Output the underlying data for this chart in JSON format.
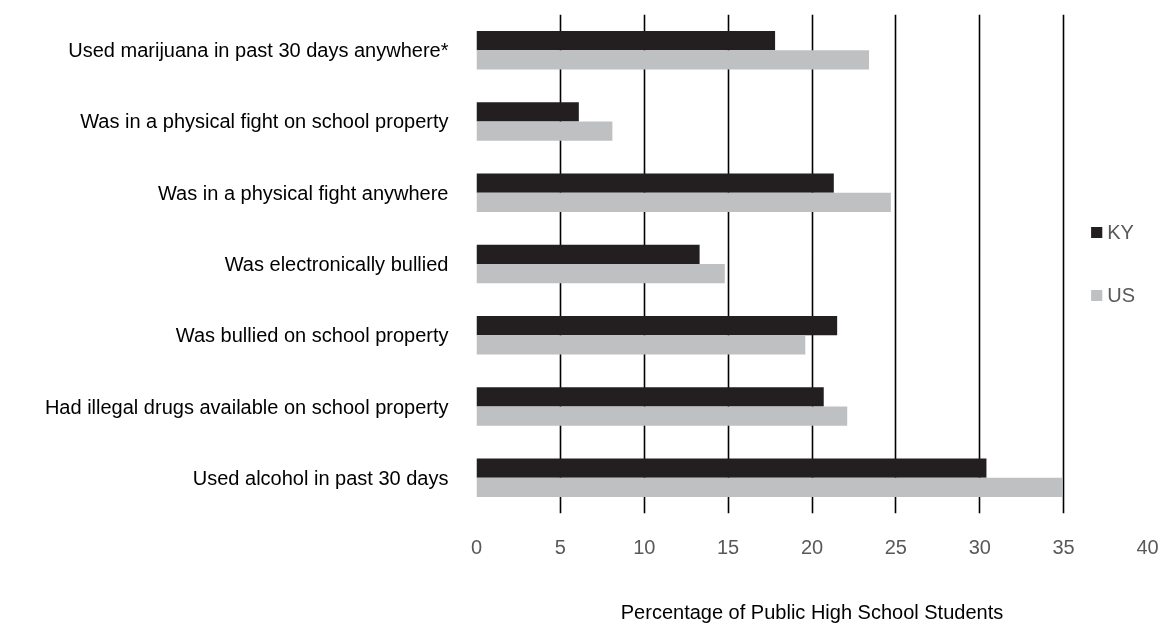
{
  "chart_data": {
    "type": "bar",
    "orientation": "horizontal",
    "xlabel": "Percentage of Public High School Students",
    "categories": [
      "Used marijuana in past 30 days anywhere*",
      "Was in a physical fight on school property",
      "Was in a physical fight anywhere",
      "Was electronically bullied",
      "Was bullied on school property",
      "Had illegal drugs available on school property",
      "Used alcohol in past 30 days"
    ],
    "series": [
      {
        "name": "KY",
        "color": "#231f20",
        "values": [
          17.8,
          6.1,
          21.3,
          13.3,
          21.5,
          20.7,
          30.4
        ]
      },
      {
        "name": "US",
        "color": "#bfc0c2",
        "values": [
          23.4,
          8.1,
          24.7,
          14.8,
          19.6,
          22.1,
          34.9
        ]
      }
    ],
    "xlim": [
      0,
      40
    ],
    "xticks": [
      0,
      5,
      10,
      15,
      20,
      25,
      30,
      35,
      40
    ],
    "grid": "x",
    "legend": "right"
  }
}
